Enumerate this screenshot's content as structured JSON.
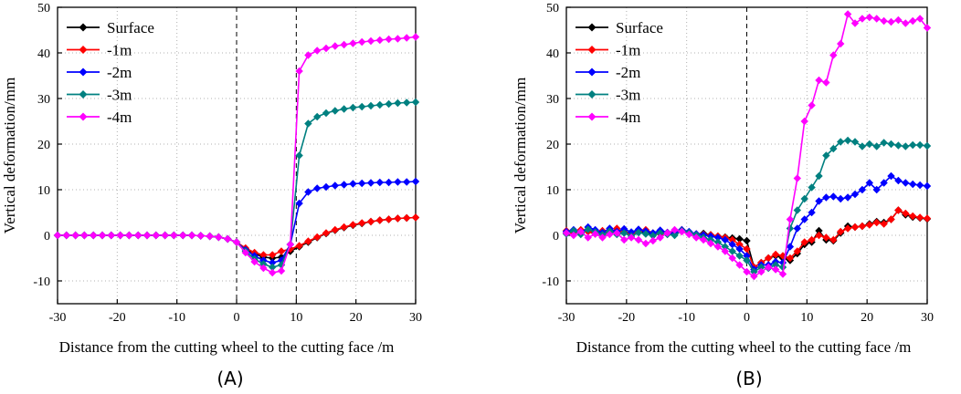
{
  "chart_data": [
    {
      "type": "line",
      "panel_label": "(A)",
      "xlabel": "Distance from the cutting wheel to the cutting face /m",
      "ylabel": "Vertical deformation/mm",
      "xlim": [
        -30,
        30
      ],
      "ylim": [
        -15,
        50
      ],
      "xticks": [
        -30,
        -20,
        -10,
        0,
        10,
        20,
        30
      ],
      "yticks": [
        -10,
        0,
        10,
        20,
        30,
        40,
        50
      ],
      "grid": true,
      "reference_line_x": 0,
      "reference_line_x2": 10,
      "legend_position": "top-left",
      "x": [
        -30,
        -28.5,
        -27,
        -25.5,
        -24,
        -22.5,
        -21,
        -19.5,
        -18,
        -16.5,
        -15,
        -13.5,
        -12,
        -10.5,
        -9,
        -7.5,
        -6,
        -4.5,
        -3,
        -1.5,
        0,
        1.5,
        3,
        4.5,
        6,
        7.5,
        9,
        10.5,
        12,
        13.5,
        15,
        16.5,
        18,
        19.5,
        21,
        22.5,
        24,
        25.5,
        27,
        28.5,
        30
      ],
      "series": [
        {
          "name": "Surface",
          "color": "#000000",
          "values": [
            0,
            0,
            0,
            0,
            0,
            0,
            0,
            0,
            0,
            0,
            0,
            0,
            0,
            0,
            0,
            0,
            -0.1,
            -0.2,
            -0.4,
            -0.8,
            -1.5,
            -3,
            -4,
            -4.8,
            -5,
            -4.8,
            -3.5,
            -2.5,
            -1.5,
            -0.5,
            0.4,
            1.1,
            1.7,
            2.2,
            2.6,
            3,
            3.3,
            3.5,
            3.7,
            3.8,
            3.9
          ]
        },
        {
          "name": "-1m",
          "color": "#ff0000",
          "values": [
            0,
            0,
            0,
            0,
            0,
            0,
            0,
            0,
            0,
            0,
            0,
            0,
            0,
            0,
            0,
            0,
            -0.1,
            -0.2,
            -0.4,
            -0.8,
            -1.5,
            -2.8,
            -3.8,
            -4.3,
            -4.3,
            -3.5,
            -3,
            -2.3,
            -1.3,
            -0.4,
            0.5,
            1.2,
            1.8,
            2.3,
            2.7,
            3,
            3.3,
            3.5,
            3.7,
            3.8,
            3.9
          ]
        },
        {
          "name": "-2m",
          "color": "#0000ff",
          "values": [
            0,
            0,
            0,
            0,
            0,
            0,
            0,
            0,
            0,
            0,
            0,
            0,
            0,
            0,
            0,
            0,
            -0.1,
            -0.2,
            -0.4,
            -0.8,
            -1.5,
            -3.2,
            -4.5,
            -5.5,
            -6,
            -5.5,
            -2,
            7,
            9.5,
            10.3,
            10.6,
            10.9,
            11.1,
            11.3,
            11.4,
            11.5,
            11.6,
            11.6,
            11.7,
            11.7,
            11.8
          ]
        },
        {
          "name": "-3m",
          "color": "#008080",
          "values": [
            0,
            0,
            0,
            0,
            0,
            0,
            0,
            0,
            0,
            0,
            0,
            0,
            0,
            0,
            0,
            0,
            -0.1,
            -0.2,
            -0.4,
            -0.8,
            -1.5,
            -3.5,
            -5.2,
            -6.3,
            -7,
            -6.5,
            -2,
            17.5,
            24.5,
            26,
            26.8,
            27.3,
            27.7,
            28,
            28.2,
            28.4,
            28.6,
            28.8,
            29,
            29.1,
            29.2
          ]
        },
        {
          "name": "-4m",
          "color": "#ff00ff",
          "values": [
            0,
            0,
            0,
            0,
            0,
            0,
            0,
            0,
            0,
            0,
            0,
            0,
            0,
            0,
            0,
            0,
            -0.1,
            -0.2,
            -0.4,
            -0.8,
            -1.5,
            -3.8,
            -5.8,
            -7.2,
            -8.2,
            -7.8,
            -2,
            36,
            39.5,
            40.5,
            41,
            41.5,
            41.8,
            42.1,
            42.4,
            42.6,
            42.8,
            43,
            43.1,
            43.3,
            43.5
          ]
        }
      ]
    },
    {
      "type": "line",
      "panel_label": "(B)",
      "xlabel": "Distance from the cutting wheel to the cutting face /m",
      "ylabel": "Vertical deformation/mm",
      "xlim": [
        -30,
        30
      ],
      "ylim": [
        -15,
        50
      ],
      "xticks": [
        -30,
        -20,
        -10,
        0,
        10,
        20,
        30
      ],
      "yticks": [
        -10,
        0,
        10,
        20,
        30,
        40,
        50
      ],
      "grid": true,
      "reference_line_x": 0,
      "legend_position": "top-left",
      "x": [
        -30,
        -28.8,
        -27.6,
        -26.4,
        -25.2,
        -24,
        -22.8,
        -21.6,
        -20.4,
        -19.2,
        -18,
        -16.8,
        -15.6,
        -14.4,
        -13.2,
        -12,
        -10.8,
        -9.6,
        -8.4,
        -7.2,
        -6,
        -4.8,
        -3.6,
        -2.4,
        -1.2,
        0,
        1.2,
        2.4,
        3.6,
        4.8,
        6,
        7.2,
        8.4,
        9.6,
        10.8,
        12,
        13.2,
        14.4,
        15.6,
        16.8,
        18,
        19.2,
        20.4,
        21.6,
        22.8,
        24,
        25.2,
        26.4,
        27.6,
        28.8,
        30
      ],
      "series": [
        {
          "name": "Surface",
          "color": "#000000",
          "values": [
            0.5,
            0.8,
            0.3,
            1.2,
            0.6,
            0.2,
            0.9,
            0.4,
            0.7,
            0.3,
            0.8,
            0.5,
            0.2,
            0.6,
            0.4,
            0.3,
            0.9,
            0.5,
            0.2,
            0.4,
            0.1,
            -0.2,
            -0.4,
            -0.6,
            -0.8,
            -1.2,
            -7,
            -6,
            -5,
            -4.5,
            -5,
            -5.5,
            -4,
            -2,
            -1.5,
            1,
            -1,
            -1.2,
            0.5,
            2,
            1.8,
            2,
            2.5,
            3,
            2.8,
            3.5,
            5.5,
            4.5,
            4,
            3.8,
            3.6
          ]
        },
        {
          "name": "-1m",
          "color": "#ff0000",
          "values": [
            1,
            0.5,
            1.2,
            0.8,
            0.3,
            1,
            0.5,
            1.5,
            0.6,
            0.2,
            0.8,
            1.2,
            0.5,
            0.3,
            0.6,
            0.9,
            1.2,
            0.5,
            0.3,
            0.2,
            0.1,
            -0.2,
            -0.5,
            -1,
            -2,
            -3,
            -7,
            -6,
            -5,
            -4.2,
            -4.5,
            -5,
            -3.5,
            -1.5,
            -1,
            0,
            -0.5,
            -1,
            0.8,
            1.5,
            1.8,
            2,
            2.3,
            2.8,
            2.5,
            3.5,
            5.5,
            4.8,
            4.2,
            3.9,
            3.7
          ]
        },
        {
          "name": "-2m",
          "color": "#0000ff",
          "values": [
            0.8,
            1.2,
            0.5,
            1.8,
            1.2,
            0.6,
            1.5,
            0.8,
            1.4,
            0.7,
            1.3,
            0.9,
            0.5,
            1.1,
            0.6,
            0.4,
            1.2,
            0.8,
            0.3,
            0.1,
            -0.2,
            -0.5,
            -1,
            -2,
            -3,
            -4.5,
            -7.5,
            -6.5,
            -6.5,
            -5.8,
            -6,
            -2.5,
            1.5,
            3.5,
            5,
            7.5,
            8.3,
            8.5,
            8,
            8.3,
            9,
            10,
            11.5,
            10,
            11.5,
            13,
            12,
            11.5,
            11.2,
            11,
            10.8
          ]
        },
        {
          "name": "-3m",
          "color": "#008080",
          "values": [
            0.3,
            1,
            0.2,
            1.3,
            0.7,
            0.1,
            0.9,
            0.2,
            0.5,
            -0.2,
            0.6,
            0.3,
            -0.1,
            0.5,
            0.2,
            0,
            1,
            0.6,
            0.1,
            -0.5,
            -1,
            -1.5,
            -2.5,
            -3.5,
            -4.5,
            -5.5,
            -8,
            -7,
            -7.2,
            -6.5,
            -7,
            1.5,
            5.5,
            8,
            10.5,
            13,
            17.5,
            19,
            20.5,
            20.8,
            20.5,
            19.5,
            20,
            19.5,
            20.3,
            20,
            19.7,
            19.5,
            19.8,
            19.8,
            19.6
          ]
        },
        {
          "name": "-4m",
          "color": "#ff00ff",
          "values": [
            0.5,
            0,
            0.8,
            -0.5,
            0.3,
            -0.5,
            0.2,
            0.5,
            -1,
            -0.5,
            -1,
            -1.8,
            -1.2,
            -0.5,
            0.5,
            1.2,
            0.8,
            0.2,
            -0.5,
            -1,
            -1.8,
            -2.5,
            -3.5,
            -5,
            -6.5,
            -8,
            -9,
            -8,
            -7,
            -7.5,
            -8.5,
            3.5,
            12.5,
            25,
            28.5,
            34,
            33.5,
            39.5,
            42,
            48.5,
            46.5,
            47.5,
            47.8,
            47.5,
            47,
            46.8,
            47.2,
            46.5,
            47,
            47.5,
            45.5
          ]
        }
      ]
    }
  ]
}
